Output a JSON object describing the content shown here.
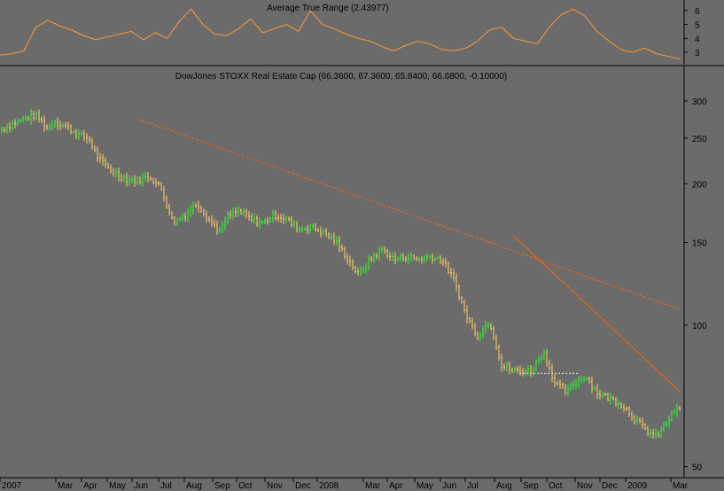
{
  "chart_data": [
    {
      "type": "line",
      "title": "Average True Range (2.43977)",
      "series": [],
      "ylim": [
        2.3,
        6.5
      ],
      "y_ticks": [
        "6",
        "5",
        "4",
        "3"
      ],
      "x": [
        0,
        2,
        4,
        6,
        8,
        10,
        12,
        14,
        16,
        18,
        20,
        22,
        24,
        26,
        28,
        30,
        32,
        34,
        36,
        38,
        40,
        42,
        44,
        46,
        48,
        50,
        52,
        54,
        56,
        58,
        60,
        62,
        64,
        66,
        68,
        70,
        72,
        74,
        76,
        78,
        80,
        82,
        84,
        86,
        88,
        90,
        92,
        94,
        96,
        98,
        100,
        102,
        104,
        106,
        108,
        110,
        112,
        114
      ],
      "y": [
        2.8,
        2.9,
        3.1,
        4.8,
        5.3,
        4.9,
        4.6,
        4.2,
        3.9,
        4.1,
        4.3,
        4.5,
        3.9,
        4.4,
        4.0,
        5.2,
        6.1,
        5.0,
        4.3,
        4.2,
        4.7,
        5.4,
        4.4,
        4.7,
        5.0,
        4.5,
        6.0,
        5.0,
        4.7,
        4.3,
        4.0,
        3.8,
        3.4,
        3.1,
        3.5,
        3.8,
        3.6,
        3.2,
        3.1,
        3.3,
        3.8,
        4.6,
        4.8,
        4.0,
        3.8,
        3.6,
        4.8,
        5.7,
        6.1,
        5.6,
        4.5,
        3.8,
        3.2,
        3.0,
        3.3,
        2.9,
        2.7,
        2.5
      ]
    },
    {
      "type": "line",
      "title": "DowJones STOXX Real Estate Cap (66.3600, 67.3600, 65.8400, 66.6800, -0.10000)",
      "y_scale": "log",
      "ylim": [
        48,
        330
      ],
      "y_ticks": [
        "300",
        "250",
        "200",
        "150",
        "100",
        "50"
      ],
      "x_ticks": [
        "2007",
        "Mar",
        "Apr",
        "May",
        "Jun",
        "Jul",
        "Aug",
        "Sep",
        "Oct",
        "Nov",
        "Dec",
        "2008",
        "Mar",
        "Apr",
        "May",
        "Jun",
        "Jul",
        "Aug",
        "Sep",
        "Oct",
        "Nov",
        "Dec",
        "2009",
        "Mar"
      ],
      "series": [],
      "x": [
        0,
        2,
        4,
        6,
        8,
        9,
        11,
        13,
        15,
        16,
        17,
        19,
        21,
        23,
        25,
        27,
        29,
        31,
        33,
        35,
        37,
        38,
        40,
        42,
        44,
        46,
        48,
        50,
        52,
        54,
        56,
        58,
        60,
        62,
        64,
        66,
        68,
        70,
        72,
        74,
        76,
        78,
        80,
        82,
        84,
        86,
        87,
        89,
        91,
        93,
        95,
        96,
        98,
        100,
        102,
        104,
        106,
        108,
        110,
        112,
        113
      ],
      "y": [
        260,
        268,
        275,
        280,
        262,
        272,
        265,
        255,
        248,
        232,
        222,
        212,
        205,
        203,
        208,
        195,
        165,
        172,
        182,
        168,
        158,
        170,
        175,
        168,
        165,
        172,
        168,
        160,
        162,
        158,
        152,
        140,
        128,
        138,
        145,
        138,
        140,
        138,
        140,
        138,
        125,
        105,
        95,
        102,
        82,
        80,
        80,
        80,
        88,
        75,
        72,
        75,
        78,
        72,
        70,
        68,
        64,
        60,
        58,
        63,
        66
      ],
      "trendlines": [
        {
          "type": "dashed",
          "from": [
            23,
            275
          ],
          "to": [
            114,
            108
          ]
        },
        {
          "type": "solid",
          "from": [
            86,
            155
          ],
          "to": [
            114,
            72
          ]
        },
        {
          "type": "dotted",
          "from": [
            87,
            79
          ],
          "to": [
            97,
            79
          ]
        }
      ]
    }
  ],
  "colors": {
    "background": "#6b6b6b",
    "atr_line": "#ff9933",
    "up_bar": "#2bff2b",
    "down_bar": "#ffcc66",
    "trend": "#ff6600",
    "divider": "#000000",
    "text": "#000000"
  }
}
